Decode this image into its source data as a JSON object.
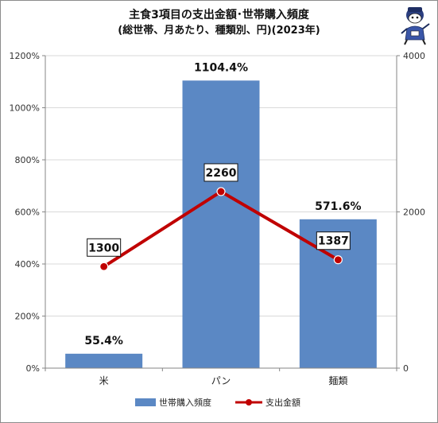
{
  "title": "主食3項目の支出金額･世帯購入頻度",
  "subtitle": "(総世帯、月あたり、種類別、円)(2023年)",
  "chart_data": {
    "type": "bar",
    "categories": [
      "米",
      "パン",
      "麺類"
    ],
    "series": [
      {
        "name": "世帯購入頻度",
        "type": "bar",
        "axis": "left",
        "values": [
          55.4,
          1104.4,
          571.6
        ],
        "labels": [
          "55.4%",
          "1104.4%",
          "571.6%"
        ],
        "color": "#5b88c4"
      },
      {
        "name": "支出金額",
        "type": "line",
        "axis": "right",
        "values": [
          1300,
          2260,
          1387
        ],
        "labels": [
          "1300",
          "2260",
          "1387"
        ],
        "color": "#c00000"
      }
    ],
    "y_left": {
      "min": 0,
      "max": 1200,
      "ticks": [
        "0%",
        "200%",
        "400%",
        "600%",
        "800%",
        "1000%",
        "1200%"
      ]
    },
    "y_right": {
      "min": 0,
      "max": 4000,
      "ticks": [
        "0",
        "2000",
        "4000"
      ]
    },
    "legend_position": "bottom"
  }
}
